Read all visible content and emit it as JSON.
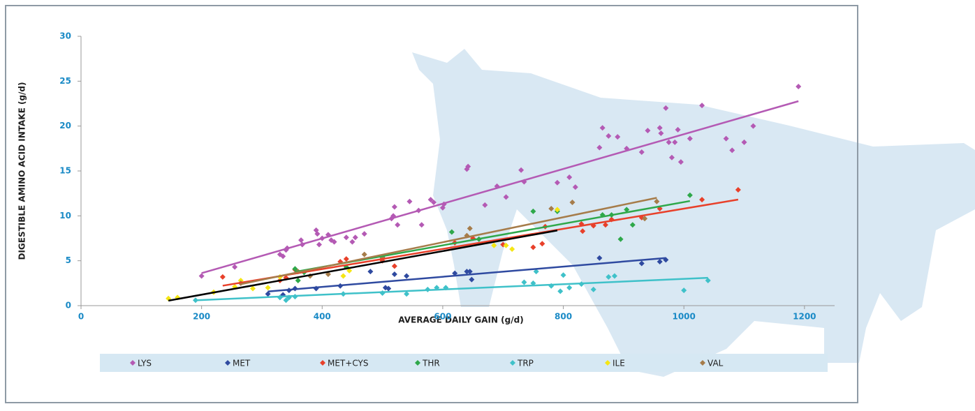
{
  "chart_data": {
    "type": "scatter",
    "x_label": "AVERAGE DAILY GAIN (g/d)",
    "y_label": "DIGESTIBLE AMINO ACID INTAKE (g/d)",
    "xlim": [
      0,
      1250
    ],
    "xticks": [
      0,
      200,
      400,
      600,
      800,
      1000,
      1200
    ],
    "ylim": [
      0,
      30
    ],
    "yticks": [
      0,
      5,
      10,
      15,
      20,
      25,
      30
    ],
    "legend": "bottom",
    "trendline": true,
    "series": [
      {
        "name": "LYS",
        "color": "#b45ab4",
        "trendline_color": "#b45ab4",
        "x": [
          200,
          255,
          330,
          335,
          340,
          342,
          365,
          367,
          390,
          392,
          395,
          400,
          410,
          415,
          420,
          440,
          450,
          455,
          470,
          515,
          518,
          520,
          525,
          545,
          560,
          565,
          580,
          585,
          600,
          602,
          640,
          642,
          670,
          690,
          705,
          730,
          735,
          790,
          810,
          820,
          860,
          865,
          875,
          890,
          905,
          930,
          940,
          960,
          962,
          970,
          975,
          980,
          985,
          990,
          995,
          1010,
          1030,
          1070,
          1080,
          1100,
          1115,
          1190
        ],
        "values": [
          3.3,
          4.3,
          5.7,
          5.5,
          6.2,
          6.4,
          7.3,
          6.8,
          8.4,
          8,
          6.8,
          7.5,
          7.9,
          7.3,
          7.1,
          7.6,
          7.1,
          7.6,
          8,
          9.7,
          10,
          11,
          9,
          11.6,
          10.6,
          9,
          11.8,
          11.5,
          10.9,
          11.3,
          15.2,
          15.5,
          11.2,
          13.3,
          12.1,
          15.1,
          13.8,
          13.7,
          14.3,
          13.2,
          17.6,
          19.8,
          18.9,
          18.8,
          17.5,
          17.1,
          19.5,
          19.8,
          19.2,
          22,
          18.2,
          16.5,
          18.2,
          19.6,
          16,
          18.6,
          22.3,
          18.6,
          17.3,
          18.2,
          20,
          24.4
        ]
      },
      {
        "name": "MET",
        "color": "#2f4aa0",
        "trendline_color": "#2f4aa0",
        "x": [
          310,
          335,
          345,
          355,
          390,
          430,
          480,
          505,
          510,
          520,
          540,
          620,
          640,
          645,
          648,
          860,
          930,
          960,
          970
        ],
        "values": [
          1.3,
          1.2,
          1.7,
          1.9,
          1.9,
          2.2,
          3.8,
          2,
          1.9,
          3.5,
          3.3,
          3.6,
          3.8,
          3.8,
          2.9,
          5.3,
          4.7,
          4.9,
          5.1
        ]
      },
      {
        "name": "MET+CYS",
        "color": "#e8402a",
        "trendline_color": "#e8402a",
        "x": [
          235,
          330,
          340,
          355,
          430,
          440,
          500,
          520,
          620,
          650,
          700,
          750,
          765,
          770,
          830,
          832,
          850,
          870,
          880,
          930,
          960,
          1030,
          1090
        ],
        "values": [
          3.2,
          2.8,
          3.1,
          4,
          4.9,
          5.2,
          5,
          4.4,
          7,
          7.5,
          6.8,
          6.5,
          6.9,
          8.8,
          9.1,
          8.3,
          8.9,
          9,
          9.6,
          9.8,
          10.8,
          11.8,
          12.9
        ]
      },
      {
        "name": "THR",
        "color": "#2ea84a",
        "trendline_color": "#2ea84a",
        "x": [
          355,
          360,
          370,
          440,
          500,
          615,
          660,
          750,
          790,
          865,
          880,
          895,
          905,
          915,
          1010
        ],
        "values": [
          4.1,
          2.8,
          3.7,
          4.3,
          5.4,
          8.2,
          7.4,
          10.5,
          10.5,
          10.1,
          10.1,
          7.4,
          10.7,
          9,
          12.3
        ]
      },
      {
        "name": "TRP",
        "color": "#3fc1c9",
        "trendline_color": "#3fc1c9",
        "x": [
          190,
          330,
          340,
          345,
          355,
          435,
          500,
          540,
          575,
          590,
          605,
          735,
          750,
          755,
          780,
          795,
          800,
          810,
          830,
          850,
          875,
          885,
          1000,
          1040
        ],
        "values": [
          0.6,
          0.9,
          0.6,
          0.9,
          1,
          1.3,
          1.4,
          1.3,
          1.8,
          2,
          2,
          2.6,
          2.5,
          3.8,
          2.2,
          1.6,
          3.4,
          2,
          2.4,
          1.8,
          3.2,
          3.3,
          1.7,
          2.8
        ]
      },
      {
        "name": "ILE",
        "color": "#f5e614",
        "trendline_color": "#000000",
        "x": [
          145,
          160,
          220,
          255,
          265,
          285,
          310,
          330,
          435,
          445,
          685,
          705,
          715,
          790
        ],
        "values": [
          0.8,
          0.9,
          1.5,
          2.1,
          2.8,
          1.9,
          2,
          3.2,
          3.3,
          3.9,
          6.7,
          6.7,
          6.3,
          10.7
        ]
      },
      {
        "name": "VAL",
        "color": "#a67c4a",
        "trendline_color": "#a67c4a",
        "x": [
          265,
          360,
          380,
          410,
          470,
          500,
          640,
          645,
          780,
          815,
          935,
          955
        ],
        "values": [
          2.5,
          3.8,
          3.3,
          3.5,
          5.7,
          5.3,
          7.8,
          8.6,
          10.8,
          11.5,
          9.7,
          11.6
        ]
      }
    ]
  }
}
